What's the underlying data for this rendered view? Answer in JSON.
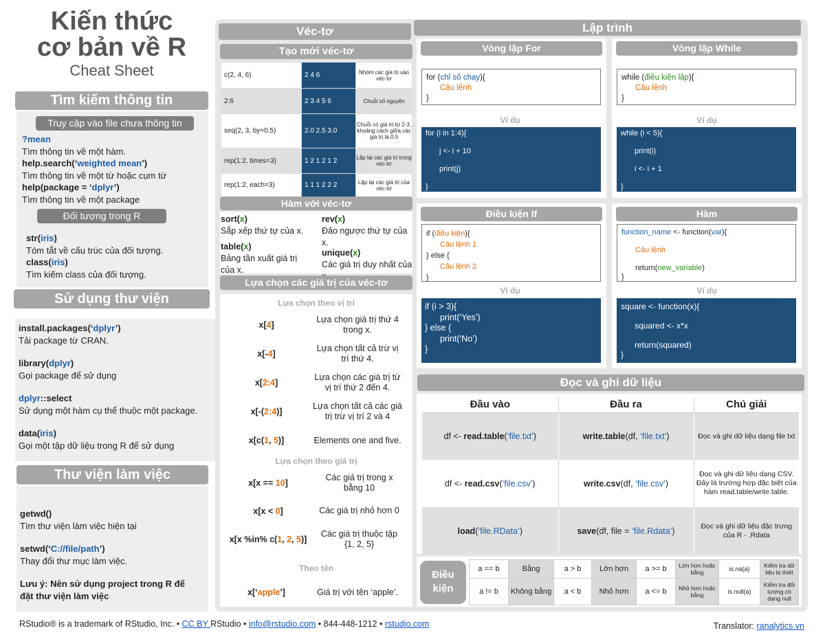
{
  "title": {
    "line1": "Kiến thức",
    "line2": "cơ bản về R",
    "line3": "Cheat Sheet"
  },
  "help": {
    "header": "Tìm kiếm thông tin",
    "sub1": "Truy cập vào file chưa thông tin",
    "items": [
      {
        "code": "?mean",
        "desc": "Tìm thông tin về một hàm."
      },
      {
        "code_pre": "help.search(‘",
        "code_arg": "weighted mean",
        "code_post": "’)",
        "desc": "Tìm thông tin về một từ hoặc cụm từ"
      },
      {
        "code_pre": "help(package = ‘",
        "code_arg": "dplyr",
        "code_post": "’)",
        "desc": "Tìm thông tin về một package"
      }
    ],
    "sub2": "Đối tượng trong R",
    "obj": [
      {
        "fn": "str",
        "arg": "iris",
        "desc": "Tóm tắt về cấu trúc của đối tượng."
      },
      {
        "fn": "class",
        "arg": "iris",
        "desc": "Tìm kiếm class của đối tượng."
      }
    ]
  },
  "lib": {
    "header": "Sử dụng thư viện",
    "items": [
      {
        "pre": "install.packages(‘",
        "arg": "dplyr",
        "post": "’)",
        "desc": "Tải package từ CRAN."
      },
      {
        "pre": "library(",
        "arg": "dplyr",
        "post": ")",
        "desc": "Gọi package để sử dụng"
      },
      {
        "pre": "",
        "arg": "dplyr",
        "post": "::select",
        "desc": "Sử dụng một hàm cụ thể thuộc một package."
      },
      {
        "pre": "data(",
        "arg": "iris",
        "post": ")",
        "desc": "Gọi một tập dữ liệu trong R để sử dụng"
      }
    ]
  },
  "wd": {
    "header": "Thư viện làm việc",
    "items": [
      {
        "pre": "getwd()",
        "arg": "",
        "post": "",
        "desc": "Tìm thư viện làm việc hiện tại"
      },
      {
        "pre": "setwd(‘",
        "arg": "C://file/path",
        "post": "’)",
        "desc": "Thay đổi thư mục làm việc."
      }
    ],
    "note1": "Lưu ý: Nên sử dụng project trong R để",
    "note2": "đặt thư viện làm việc"
  },
  "vec": {
    "header": "Véc-tơ",
    "create_header": "Tạo mới véc-tơ",
    "create": [
      {
        "code": "c(2, 4, 6)",
        "result": "2 4 6",
        "desc": "Nhóm các giá trị vào véc-tơ"
      },
      {
        "code": "2:6",
        "result": "2 3 4 5 6",
        "desc": "Chuỗi số nguyên"
      },
      {
        "code": "seq(2, 3, by=0.5)",
        "result": "2.0 2.5 3.0",
        "desc": "Chuỗi có giá trị từ 2-3, khoảng cách giữa các giá trị là 0.5"
      },
      {
        "code": "rep(1:2, times=3)",
        "result": "1 2 1 2 1 2",
        "desc": "Lặp lại các giá trị trong véc-tơ"
      },
      {
        "code": "rep(1:2, each=3)",
        "result": "1 1 1 2 2 2",
        "desc": "Lặp lại các giá trị của véc-tơ"
      }
    ],
    "fn_header": "Hàm với véc-tơ",
    "fns": [
      {
        "fn": "sort",
        "desc": "Sắp xếp thứ tự của x."
      },
      {
        "fn": "rev",
        "desc": "Đảo ngược thứ tự của x."
      },
      {
        "fn": "table",
        "desc": "Bảng tần xuất giá trị của x."
      },
      {
        "fn": "unique",
        "desc": "Các giá trị duy nhất của x"
      }
    ],
    "x": "x",
    "sel_header": "Lựa chọn các giá trị của véc-tơ",
    "sel_pos": "Lựa chọn theo vị trí",
    "sel_val": "Lựa chọn theo giá trị",
    "sel_name": "Theo tên",
    "pos": [
      {
        "pre": "x[",
        "arg": "4",
        "post": "]",
        "desc": "Lựa chọn giá trị thứ 4 trong x."
      },
      {
        "pre": "x[-",
        "arg": "4",
        "post": "]",
        "desc": "Lựa chọn tất cả trừ vị trí thứ 4."
      },
      {
        "pre": "x[",
        "arg": "2:4",
        "post": "]",
        "desc": "Lựa chọn các giá trị từ vị trí thứ 2 đến 4."
      },
      {
        "pre": "x[-(",
        "arg": "2:4",
        "post": ")]",
        "desc": "Lựa chọn tất cả các giá trị trừ vị trí 2 và 4"
      },
      {
        "pre": "x[c(",
        "arg": "1",
        "mid": ", ",
        "arg2": "5",
        "post": ")]",
        "desc": "Elements one and five."
      }
    ],
    "val": [
      {
        "pre": "x[x == ",
        "arg": "10",
        "post": "]",
        "desc": "Các giá trị trong x bằng 10"
      },
      {
        "pre": "x[x < ",
        "arg": "0",
        "post": "]",
        "desc": "Các giá trị nhỏ hơn 0"
      },
      {
        "pre": "x[x %in% c(",
        "arg": "1",
        "m1": ", ",
        "arg2": "2",
        "m2": ", ",
        "arg3": "5",
        "post": ")]",
        "desc": "Các giá trị thuộc tập {1, 2, 5}"
      }
    ],
    "name": {
      "pre": "x[‘",
      "arg": "apple",
      "post": "’]",
      "desc": "Giá trị với tên ‘apple’."
    }
  },
  "prog": {
    "header": "Lập trình",
    "for_header": "Vòng lặp For",
    "while_header": "Vòng lặp While",
    "example": "Ví dụ",
    "for_syntax": {
      "l1a": "for (",
      "l1b": "chỉ số chạy",
      "l1c": "){",
      "l2": "Câu lệnh",
      "l3": "}"
    },
    "for_example": [
      "for (i in 1:4){",
      "j <- i + 10",
      "print(j)",
      "}"
    ],
    "while_syntax": {
      "l1a": "while (",
      "l1b": "điều kiện lặp",
      "l1c": "){",
      "l2": "Câu lệnh",
      "l3": "}"
    },
    "while_example": [
      "while (i < 5){",
      "print(i)",
      "i <- i + 1",
      "}"
    ],
    "if_header": "Điều kiện If",
    "if_syntax": {
      "l1a": "if (",
      "l1b": "điều kiện",
      "l1c": "){",
      "l2": "Câu lệnh 1",
      "l3": "} else {",
      "l4": "Câu lệnh 2",
      "l5": "}"
    },
    "if_example": [
      "if (i > 3){",
      "print(‘Yes’)",
      "} else {",
      "print(‘No’)",
      "}"
    ],
    "fn_header": "Hàm",
    "fn_syntax": {
      "l1a": "function_name",
      "l1b": " <- function(",
      "l1c": "var",
      "l1d": "){",
      "l2": "Câu lệnh",
      "l3a": "return(",
      "l3b": "new_variable",
      "l3c": ")",
      "l4": "}"
    },
    "fn_example": [
      "square <- function(x){",
      "squared <- x*x",
      "return(squared)",
      "}"
    ]
  },
  "io": {
    "header": "Đọc và ghi dữ liệu",
    "cols": [
      "Đầu vào",
      "Đầu ra",
      "Chú giải"
    ],
    "rows": [
      {
        "in_pre": "df <- ",
        "in_fn": "read.table",
        "in_arg": "‘file.txt’",
        "out_fn": "write.table",
        "out_mid": "(df, ",
        "out_arg": "‘file.txt’",
        "note": "Đọc và ghi dữ liệu dạng file txt"
      },
      {
        "in_pre": "df <- ",
        "in_fn": "read.csv",
        "in_arg": "‘file.csv’",
        "out_fn": "write.csv",
        "out_mid": "(df, ",
        "out_arg": "‘file.csv’",
        "note": "Đọc và ghi dữ liệu dạng CSV. Đây là trường hợp đặc biệt của hàm read.table/write.table."
      },
      {
        "in_pre": "",
        "in_fn": "load",
        "in_arg": "‘file.RData’",
        "out_fn": "save",
        "out_mid": "(df, file = ",
        "out_arg": "‘file.Rdata’",
        "note": "Đọc và ghi dữ liệu đặc trưng của R - .Rdata"
      }
    ]
  },
  "cond": {
    "label": "Điều kiện",
    "row1": [
      "a == b",
      "Bằng",
      "a > b",
      "Lớn hơn",
      "a >= b",
      "Lớn hơn hoặc bằng",
      "is.na(a)",
      "Kiểm tra dữ liệu bị thiết"
    ],
    "row2": [
      "a != b",
      "Không bằng",
      "a < b",
      "Nhỏ hơn",
      "a <= b",
      "Nhỏ hơn hoặc bằng",
      "is.null(a)",
      "Kiểm tra đối tượng có dạng null"
    ]
  },
  "footer": {
    "t1": "RStudio® is a trademark of RStudio, Inc.  •  ",
    "l1": "CC BY ",
    "t2": "RStudio •  ",
    "l2": "info@rstudio.com",
    "t3": "  •  844-448-1212 • ",
    "l3": "rstudio.com",
    "tr": "Translator: ",
    "tl": "ranalytics.vn"
  }
}
